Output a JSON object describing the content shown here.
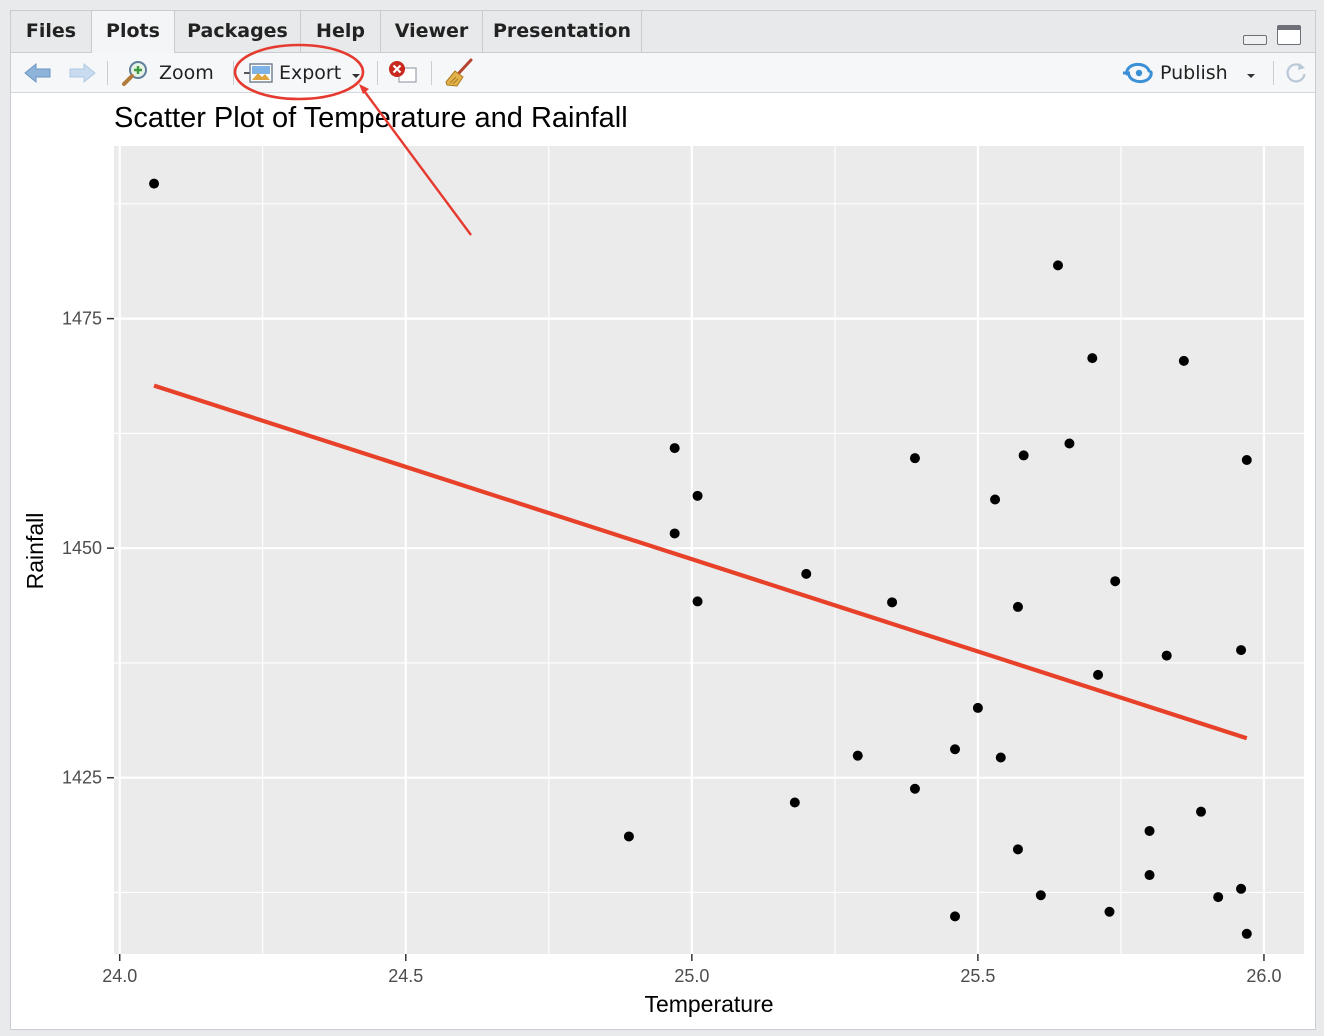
{
  "tabs": [
    {
      "label": "Files",
      "active": false
    },
    {
      "label": "Plots",
      "active": true
    },
    {
      "label": "Packages",
      "active": false
    },
    {
      "label": "Help",
      "active": false
    },
    {
      "label": "Viewer",
      "active": false
    },
    {
      "label": "Presentation",
      "active": false
    }
  ],
  "toolbar": {
    "back_icon": "arrow-left-icon",
    "forward_icon": "arrow-right-icon",
    "zoom_label": "Zoom",
    "zoom_icon": "magnifier-plus-icon",
    "export_label": "Export",
    "export_icon": "image-export-icon",
    "remove_icon": "remove-plot-icon",
    "clear_icon": "broom-icon",
    "publish_label": "Publish",
    "publish_icon": "publish-icon",
    "refresh_icon": "refresh-icon"
  },
  "colors": {
    "panel": "#ebebeb",
    "grid": "#ffffff",
    "point": "#000000",
    "fit_line": "#e8412a",
    "annotation": "#e53a2f"
  },
  "chart_data": {
    "type": "scatter",
    "title": "Scatter Plot of Temperature and Rainfall",
    "xlabel": "Temperature",
    "ylabel": "Rainfall",
    "xlim": [
      23.99,
      26.07
    ],
    "ylim": [
      1405.8,
      1493.8
    ],
    "xticks": [
      24.0,
      24.5,
      25.0,
      25.5,
      26.0
    ],
    "xtick_labels": [
      "24.0",
      "24.5",
      "25.0",
      "25.5",
      "26.0"
    ],
    "yticks": [
      1425,
      1450,
      1475
    ],
    "ytick_labels": [
      "1425",
      "1450",
      "1475"
    ],
    "grid": true,
    "legend": "none",
    "points": [
      {
        "x": 24.06,
        "y": 1489.7
      },
      {
        "x": 25.64,
        "y": 1480.8
      },
      {
        "x": 25.7,
        "y": 1470.7
      },
      {
        "x": 25.86,
        "y": 1470.4
      },
      {
        "x": 24.97,
        "y": 1460.9
      },
      {
        "x": 25.66,
        "y": 1461.4
      },
      {
        "x": 25.39,
        "y": 1459.8
      },
      {
        "x": 25.58,
        "y": 1460.1
      },
      {
        "x": 25.97,
        "y": 1459.6
      },
      {
        "x": 25.01,
        "y": 1455.7
      },
      {
        "x": 25.53,
        "y": 1455.3
      },
      {
        "x": 24.97,
        "y": 1451.6
      },
      {
        "x": 25.2,
        "y": 1447.2
      },
      {
        "x": 25.74,
        "y": 1446.4
      },
      {
        "x": 25.01,
        "y": 1444.2
      },
      {
        "x": 25.35,
        "y": 1444.1
      },
      {
        "x": 25.57,
        "y": 1443.6
      },
      {
        "x": 25.96,
        "y": 1438.9
      },
      {
        "x": 25.83,
        "y": 1438.3
      },
      {
        "x": 25.71,
        "y": 1436.2
      },
      {
        "x": 25.5,
        "y": 1432.6
      },
      {
        "x": 25.46,
        "y": 1428.1
      },
      {
        "x": 25.29,
        "y": 1427.4
      },
      {
        "x": 25.54,
        "y": 1427.2
      },
      {
        "x": 25.39,
        "y": 1423.8
      },
      {
        "x": 25.18,
        "y": 1422.3
      },
      {
        "x": 25.89,
        "y": 1421.3
      },
      {
        "x": 25.8,
        "y": 1419.2
      },
      {
        "x": 24.89,
        "y": 1418.6
      },
      {
        "x": 25.57,
        "y": 1417.2
      },
      {
        "x": 25.8,
        "y": 1414.4
      },
      {
        "x": 25.96,
        "y": 1412.9
      },
      {
        "x": 25.61,
        "y": 1412.2
      },
      {
        "x": 25.92,
        "y": 1412.0
      },
      {
        "x": 25.73,
        "y": 1410.4
      },
      {
        "x": 25.46,
        "y": 1409.9
      },
      {
        "x": 25.97,
        "y": 1408.0
      }
    ],
    "fit_line": {
      "x": [
        24.06,
        25.97
      ],
      "y": [
        1467.7,
        1429.3
      ]
    }
  }
}
